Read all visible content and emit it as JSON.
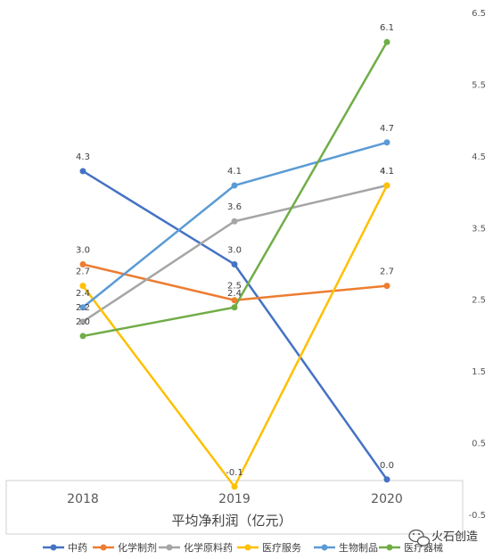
{
  "chart_data": {
    "type": "line",
    "title": "",
    "xlabel": "平均净利润（亿元）",
    "ylabel": "",
    "categories": [
      "2018",
      "2019",
      "2020"
    ],
    "ylim": [
      -0.5,
      6.5
    ],
    "yticks": [
      "6.5",
      "5.5",
      "4.5",
      "3.5",
      "2.5",
      "1.5",
      "0.5",
      "-0.5"
    ],
    "ytick_values": [
      6.5,
      5.5,
      4.5,
      3.5,
      2.5,
      1.5,
      0.5,
      -0.5
    ],
    "grid": false,
    "legend_position": "bottom",
    "series": [
      {
        "name": "中药",
        "color": "#4472C4",
        "values": [
          4.3,
          3.0,
          0.0
        ],
        "labels": [
          "4.3",
          "3.0",
          "0.0"
        ]
      },
      {
        "name": "化学制剂",
        "color": "#ED7D31",
        "values": [
          3.0,
          2.5,
          2.7
        ],
        "labels": [
          "3.0",
          "2.5",
          "2.7"
        ]
      },
      {
        "name": "化学原料药",
        "color": "#A5A5A5",
        "values": [
          2.2,
          3.6,
          4.1
        ],
        "labels": [
          "2.2",
          "3.6",
          "4.1"
        ]
      },
      {
        "name": "医疗服务",
        "color": "#FFC000",
        "values": [
          2.7,
          -0.1,
          4.1
        ],
        "labels": [
          "2.7",
          "-0.1",
          "4.1"
        ]
      },
      {
        "name": "生物制品",
        "color": "#5B9BD5",
        "values": [
          2.4,
          4.1,
          4.7
        ],
        "labels": [
          "2.4",
          "4.1",
          "4.7"
        ]
      },
      {
        "name": "医疗器械",
        "color": "#70AD47",
        "values": [
          2.0,
          2.4,
          6.1
        ],
        "labels": [
          "2.0",
          "2.4",
          "6.1"
        ]
      }
    ]
  },
  "watermark": {
    "text": "火石创造",
    "icon": "wechat-icon"
  }
}
